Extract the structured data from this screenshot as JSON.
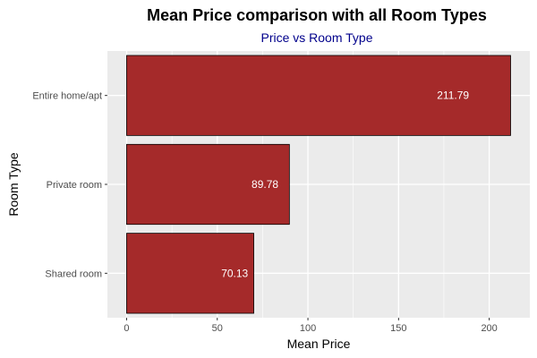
{
  "chart_data": {
    "type": "bar",
    "orientation": "horizontal",
    "title": "Mean Price comparison with all Room Types",
    "subtitle": "Price vs Room Type",
    "xlabel": "Mean Price",
    "ylabel": "Room Type",
    "categories": [
      "Entire home/apt",
      "Private room",
      "Shared room"
    ],
    "values": [
      211.79,
      89.78,
      70.13
    ],
    "data_labels": [
      "211.79",
      "89.78",
      "70.13"
    ],
    "xlim": [
      -10.6,
      222.4
    ],
    "xticks": [
      0,
      50,
      100,
      150,
      200
    ],
    "xtick_labels": [
      "0",
      "50",
      "100",
      "150",
      "200"
    ],
    "grid": true,
    "colors": {
      "bar_fill": "#a52a2a",
      "bar_stroke": "#000000",
      "panel_background": "#ebebeb",
      "grid": "#ffffff",
      "subtitle": "#00008b"
    }
  }
}
